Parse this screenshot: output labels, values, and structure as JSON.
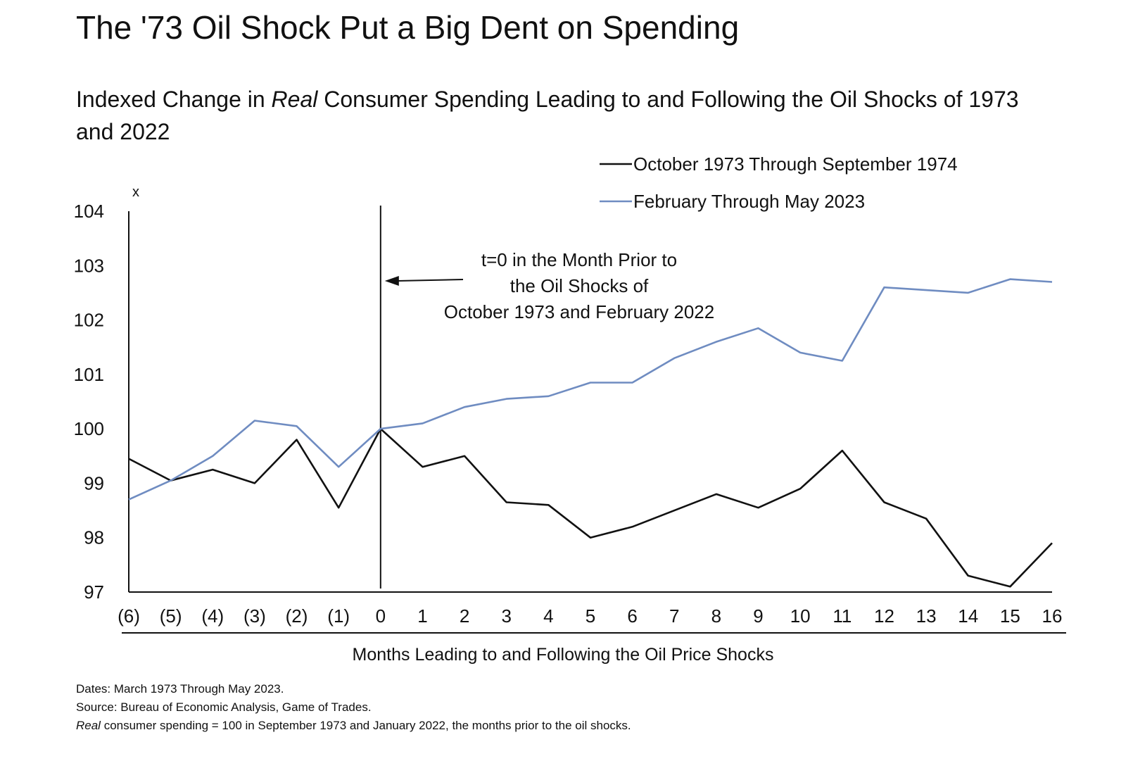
{
  "title": "The '73 Oil Shock Put a Big Dent on Spending",
  "subtitle": {
    "part1": "Indexed Change in ",
    "italic": "Real",
    "part2": " Consumer Spending Leading to and Following the Oil Shocks of 1973 and 2022"
  },
  "footnotes": {
    "dates": "Dates: March 1973 Through May 2023.",
    "source": "Source: Bureau of Economic Analysis, Game of Trades.",
    "note_italic": "Real",
    "note_rest": " consumer spending = 100 in September 1973 and January 2022, the months prior to the oil shocks."
  },
  "chart_data": {
    "type": "line",
    "x": [
      "(6)",
      "(5)",
      "(4)",
      "(3)",
      "(2)",
      "(1)",
      "0",
      "1",
      "2",
      "3",
      "4",
      "5",
      "6",
      "7",
      "8",
      "9",
      "10",
      "11",
      "12",
      "13",
      "14",
      "15",
      "16"
    ],
    "xlabel": "Months Leading to and Following the Oil Price Shocks",
    "ylabel": "x",
    "ylim": [
      97,
      104
    ],
    "yticks": [
      97,
      98,
      99,
      100,
      101,
      102,
      103,
      104
    ],
    "legend_position": "top-right",
    "series": [
      {
        "name": "October 1973 Through September 1974",
        "color": "#111111",
        "values": [
          99.45,
          99.05,
          99.25,
          99.0,
          99.8,
          98.55,
          100.0,
          99.3,
          99.5,
          98.65,
          98.6,
          98.0,
          98.2,
          98.5,
          98.8,
          98.55,
          98.9,
          99.6,
          98.65,
          98.35,
          97.3,
          97.1,
          97.9
        ]
      },
      {
        "name": "February Through May 2023",
        "color": "#6f8cc1",
        "values": [
          98.7,
          99.05,
          99.5,
          100.15,
          100.05,
          99.3,
          100.0,
          100.1,
          100.4,
          100.55,
          100.6,
          100.85,
          100.85,
          101.3,
          101.6,
          101.85,
          101.4,
          101.25,
          102.6,
          102.55,
          102.5,
          102.75,
          102.7
        ]
      }
    ],
    "annotation": {
      "lines": [
        "t=0 in the Month Prior to",
        "the Oil Shocks of",
        "October 1973 and February 2022"
      ],
      "at_x": "0"
    }
  }
}
